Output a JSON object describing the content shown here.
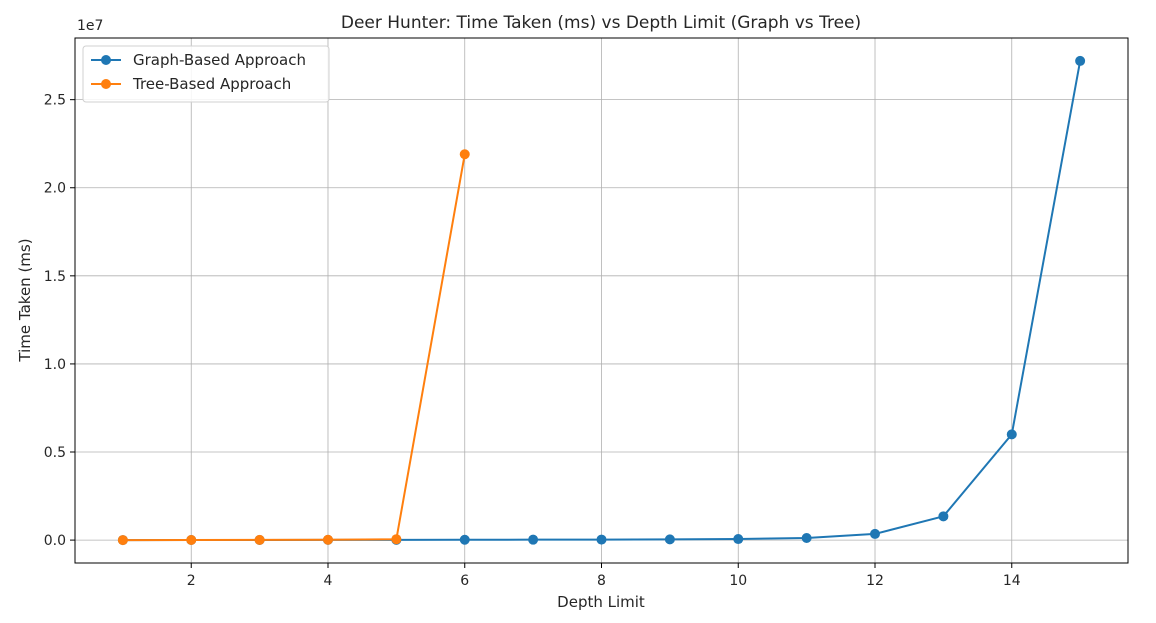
{
  "chart_data": {
    "type": "line",
    "title": "Deer Hunter: Time Taken (ms) vs Depth Limit (Graph vs Tree)",
    "xlabel": "Depth Limit",
    "ylabel": "Time Taken (ms)",
    "y_offset_label": "1e7",
    "xlim": [
      0.3,
      15.7
    ],
    "ylim": [
      -1300000,
      28500000
    ],
    "x_ticks": [
      2,
      4,
      6,
      8,
      10,
      12,
      14
    ],
    "x_tick_labels": [
      "2",
      "4",
      "6",
      "8",
      "10",
      "12",
      "14"
    ],
    "y_ticks": [
      0,
      5000000,
      10000000,
      15000000,
      20000000,
      25000000
    ],
    "y_tick_labels": [
      "0.0",
      "0.5",
      "1.0",
      "1.5",
      "2.0",
      "2.5"
    ],
    "grid": true,
    "legend_position": "top-left",
    "series": [
      {
        "name": "Graph-Based Approach",
        "color": "#1f77b4",
        "marker": "circle",
        "x": [
          1,
          2,
          3,
          4,
          5,
          6,
          7,
          8,
          9,
          10,
          11,
          12,
          13,
          14,
          15
        ],
        "y": [
          0,
          5000,
          8000,
          12000,
          15000,
          20000,
          25000,
          30000,
          40000,
          60000,
          120000,
          350000,
          1350000,
          6000000,
          27200000
        ]
      },
      {
        "name": "Tree-Based Approach",
        "color": "#ff7f0e",
        "marker": "circle",
        "x": [
          1,
          2,
          3,
          4,
          5,
          6
        ],
        "y": [
          0,
          5000,
          10000,
          20000,
          50000,
          21900000
        ]
      }
    ]
  }
}
